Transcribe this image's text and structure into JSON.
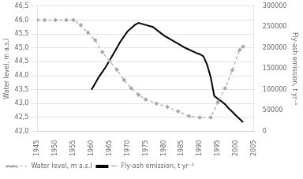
{
  "chart_data": {
    "type": "line",
    "series": [
      {
        "name": "- -  Water level, m a.s.l",
        "color": "#aaaaaa",
        "line_style": "dashed",
        "marker": "diamond",
        "x": [
          1945,
          1947,
          1950,
          1953,
          1955,
          1957,
          1959,
          1961,
          1963,
          1965,
          1967,
          1969,
          1971,
          1973,
          1975,
          1978,
          1981,
          1984,
          1987,
          1990,
          1993,
          1995,
          1997,
          1999,
          2001,
          2002
        ],
        "values": [
          46.0,
          46.0,
          46.0,
          46.0,
          46.0,
          45.82,
          45.55,
          45.28,
          44.85,
          44.52,
          44.22,
          43.85,
          43.55,
          43.32,
          43.15,
          43.0,
          42.88,
          42.72,
          42.55,
          42.5,
          42.5,
          43.05,
          43.55,
          44.2,
          44.92,
          45.05
        ]
      },
      {
        "name": "—  Fly-ash emission, t yr⁻¹",
        "color": "#000000",
        "line_style": "solid",
        "axis": "y2",
        "x": [
          1960,
          1962,
          1964,
          1966,
          1968,
          1970,
          1972,
          1973,
          1975,
          1977,
          1980,
          1983,
          1986,
          1989,
          1990,
          1991,
          1992,
          1993,
          1994,
          1995,
          1996,
          1997,
          1998,
          1999,
          2000,
          2001,
          2002
        ],
        "values": [
          100000,
          130000,
          155000,
          185000,
          215000,
          240000,
          255000,
          260000,
          255000,
          250000,
          230000,
          215000,
          200000,
          188000,
          185000,
          180000,
          160000,
          130000,
          85000,
          78000,
          72000,
          65000,
          55000,
          47000,
          38000,
          30000,
          22000
        ]
      }
    ],
    "xlim": [
      1945,
      2005
    ],
    "xticks": [
      1945,
      1950,
      1955,
      1960,
      1965,
      1970,
      1975,
      1980,
      1985,
      1990,
      1995,
      2000,
      2005
    ],
    "ylabel": "Water level, m a.s.l",
    "ylim": [
      42.0,
      46.5
    ],
    "yticks": [
      {
        "value": 42.0,
        "label": "42,0"
      },
      {
        "value": 42.5,
        "label": "42,5"
      },
      {
        "value": 43.0,
        "label": "43,0"
      },
      {
        "value": 43.5,
        "label": "43,5"
      },
      {
        "value": 44.0,
        "label": "44,0"
      },
      {
        "value": 44.5,
        "label": "44,5"
      },
      {
        "value": 45.0,
        "label": "45,0"
      },
      {
        "value": 45.5,
        "label": "45,5"
      },
      {
        "value": 46.0,
        "label": "46,0"
      },
      {
        "value": 46.5,
        "label": "46,5"
      }
    ],
    "y2label": "Fly-ash emission, t yr⁻¹",
    "y2lim": [
      0,
      300000
    ],
    "y2ticks": [
      0,
      50000,
      100000,
      150000,
      200000,
      250000,
      300000
    ],
    "grid": "y",
    "legend": "lower left"
  }
}
